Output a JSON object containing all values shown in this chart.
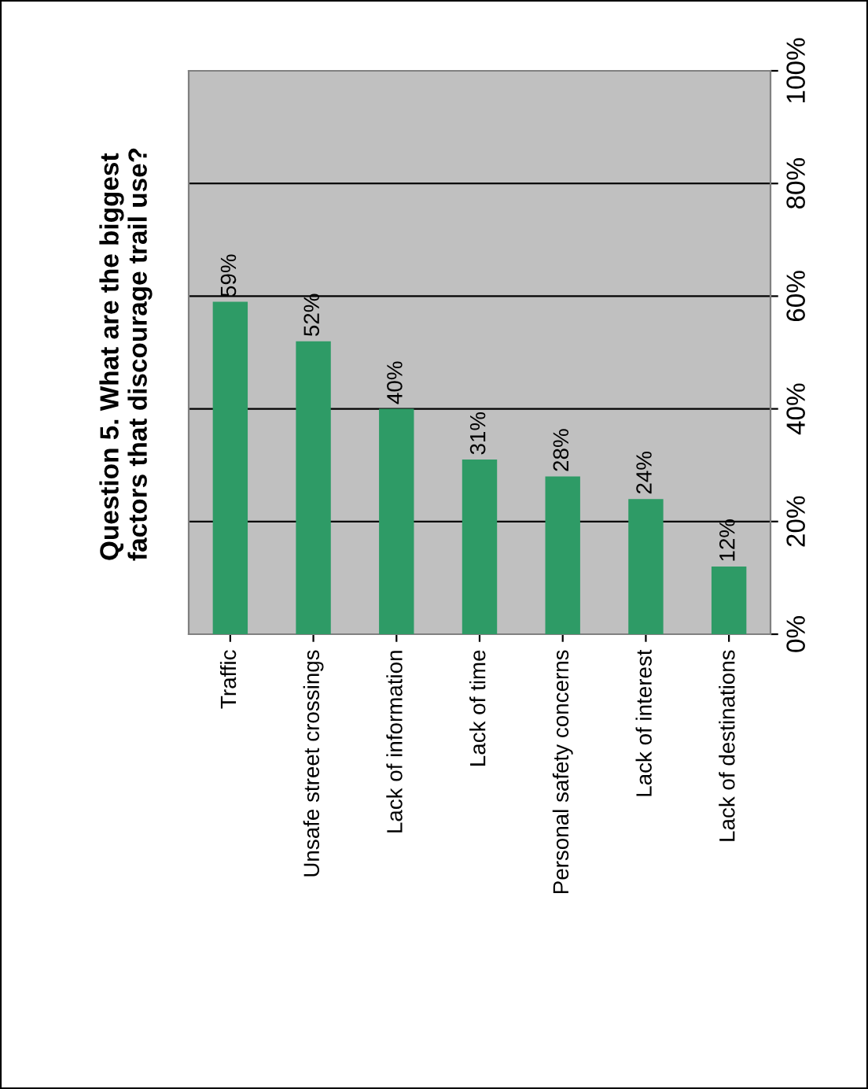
{
  "chart_data": {
    "type": "bar",
    "title": "Question 5. What are the biggest\nfactors that discourage trail use?",
    "categories": [
      "Traffic",
      "Unsafe street crossings",
      "Lack of information",
      "Lack of time",
      "Personal safety concerns",
      "Lack of interest",
      "Lack of destinations"
    ],
    "values": [
      59,
      52,
      40,
      31,
      28,
      24,
      12
    ],
    "value_labels": [
      "59%",
      "52%",
      "40%",
      "31%",
      "28%",
      "24%",
      "12%"
    ],
    "color": "#2e9b66",
    "ylim": [
      0,
      100
    ],
    "yticks": [
      {
        "value": 0,
        "label": "0%"
      },
      {
        "value": 20,
        "label": "20%"
      },
      {
        "value": 40,
        "label": "40%"
      },
      {
        "value": 60,
        "label": "60%"
      },
      {
        "value": 80,
        "label": "80%"
      },
      {
        "value": 100,
        "label": "100%"
      }
    ],
    "grid": "y"
  }
}
